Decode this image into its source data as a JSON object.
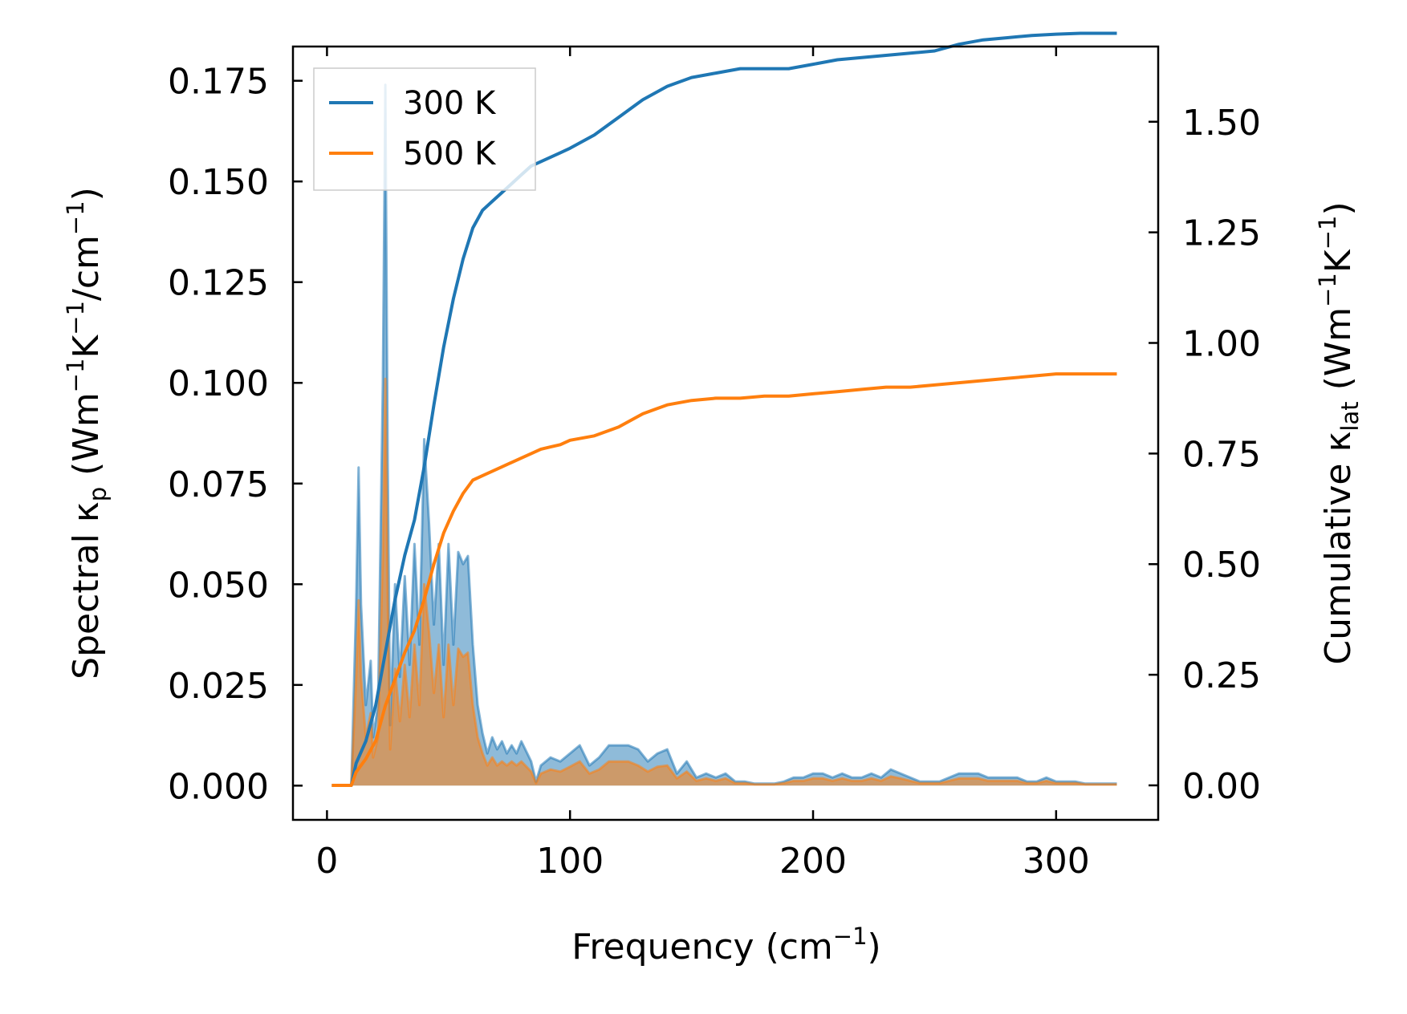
{
  "chart_data": {
    "type": "line",
    "xlabel": "Frequency (cm",
    "xlabel_sup": "−1",
    "xlabel_end": ")",
    "ylabel_left": {
      "prefix": "Spectral κ",
      "sub": "p",
      "unit_a": " (Wm",
      "sup1": "−1",
      "unit_b": "K",
      "sup2": "−1",
      "unit_c": "/cm",
      "sup3": "−1",
      "unit_d": ")"
    },
    "ylabel_right": {
      "prefix": "Cumulative κ",
      "sub": "lat",
      "unit_a": " (Wm",
      "sup1": "−1",
      "unit_b": "K",
      "sup2": "−1",
      "unit_c": ")"
    },
    "xlim": [
      -14,
      342
    ],
    "ylim_left": [
      -0.0085,
      0.1835
    ],
    "ylim_right": [
      -0.078,
      1.67
    ],
    "x_ticks": [
      0,
      100,
      200,
      300
    ],
    "x_tick_labels": [
      "0",
      "100",
      "200",
      "300"
    ],
    "y_left_ticks": [
      0,
      0.025,
      0.05,
      0.075,
      0.1,
      0.125,
      0.15,
      0.175
    ],
    "y_left_tick_labels": [
      "0.000",
      "0.025",
      "0.050",
      "0.075",
      "0.100",
      "0.125",
      "0.150",
      "0.175"
    ],
    "y_right_ticks": [
      0,
      0.25,
      0.5,
      0.75,
      1.0,
      1.25,
      1.5
    ],
    "y_right_tick_labels": [
      "0.00",
      "0.25",
      "0.50",
      "0.75",
      "1.00",
      "1.25",
      "1.50"
    ],
    "legend_position": "top-left",
    "series": [
      {
        "name": "300 K",
        "color": "#1f77b4",
        "spectral": {
          "x": [
            2,
            10,
            12,
            13,
            14,
            16,
            18,
            19,
            21,
            23,
            24,
            25,
            26,
            28,
            30,
            32,
            34,
            36,
            38,
            40,
            42,
            44,
            46,
            48,
            50,
            52,
            54,
            56,
            58,
            60,
            62,
            64,
            66,
            68,
            70,
            72,
            74,
            76,
            78,
            80,
            84,
            86,
            88,
            92,
            96,
            100,
            104,
            108,
            112,
            116,
            120,
            124,
            128,
            132,
            136,
            140,
            144,
            148,
            152,
            156,
            160,
            164,
            168,
            172,
            176,
            180,
            184,
            188,
            192,
            196,
            200,
            204,
            208,
            212,
            216,
            220,
            224,
            228,
            232,
            236,
            240,
            244,
            248,
            252,
            256,
            260,
            264,
            268,
            272,
            276,
            280,
            284,
            288,
            292,
            296,
            300,
            304,
            308,
            312,
            316,
            320,
            325
          ],
          "y": [
            0,
            0,
            0.045,
            0.079,
            0.045,
            0.02,
            0.031,
            0.012,
            0.02,
            0.1,
            0.174,
            0.08,
            0.015,
            0.05,
            0.027,
            0.052,
            0.03,
            0.06,
            0.035,
            0.086,
            0.065,
            0.04,
            0.06,
            0.03,
            0.06,
            0.035,
            0.058,
            0.055,
            0.057,
            0.035,
            0.02,
            0.013,
            0.008,
            0.012,
            0.009,
            0.011,
            0.008,
            0.01,
            0.008,
            0.011,
            0.006,
            0.001,
            0.005,
            0.007,
            0.006,
            0.008,
            0.01,
            0.005,
            0.007,
            0.01,
            0.01,
            0.01,
            0.009,
            0.006,
            0.008,
            0.009,
            0.003,
            0.006,
            0.002,
            0.003,
            0.002,
            0.003,
            0.001,
            0.001,
            0.0005,
            0.0005,
            0.0005,
            0.001,
            0.002,
            0.002,
            0.003,
            0.003,
            0.002,
            0.003,
            0.002,
            0.002,
            0.003,
            0.002,
            0.004,
            0.003,
            0.002,
            0.001,
            0.001,
            0.001,
            0.002,
            0.003,
            0.003,
            0.003,
            0.002,
            0.002,
            0.002,
            0.002,
            0.001,
            0.001,
            0.002,
            0.001,
            0.001,
            0.001,
            0.0005,
            0.0005,
            0.0005,
            0.0005
          ]
        },
        "cumulative": {
          "x": [
            2,
            10,
            12,
            16,
            20,
            24,
            28,
            32,
            36,
            40,
            44,
            48,
            52,
            56,
            60,
            64,
            68,
            72,
            76,
            80,
            84,
            88,
            92,
            96,
            100,
            110,
            120,
            130,
            140,
            150,
            160,
            170,
            180,
            190,
            200,
            210,
            220,
            230,
            240,
            250,
            260,
            270,
            280,
            290,
            300,
            310,
            325
          ],
          "y": [
            0,
            0,
            0.05,
            0.1,
            0.18,
            0.3,
            0.42,
            0.52,
            0.6,
            0.72,
            0.86,
            0.99,
            1.1,
            1.19,
            1.26,
            1.3,
            1.32,
            1.34,
            1.36,
            1.38,
            1.4,
            1.41,
            1.42,
            1.43,
            1.44,
            1.47,
            1.51,
            1.55,
            1.58,
            1.6,
            1.61,
            1.62,
            1.62,
            1.62,
            1.63,
            1.64,
            1.645,
            1.65,
            1.655,
            1.66,
            1.675,
            1.685,
            1.69,
            1.695,
            1.698,
            1.7,
            1.7
          ]
        }
      },
      {
        "name": "500 K",
        "color": "#ff7f0e",
        "spectral": {
          "x": [
            2,
            10,
            12,
            13,
            14,
            16,
            18,
            19,
            21,
            23,
            24,
            25,
            26,
            28,
            30,
            32,
            34,
            36,
            38,
            40,
            42,
            44,
            46,
            48,
            50,
            52,
            54,
            56,
            58,
            60,
            62,
            64,
            66,
            68,
            70,
            72,
            74,
            76,
            78,
            80,
            84,
            86,
            88,
            92,
            96,
            100,
            104,
            108,
            112,
            116,
            120,
            124,
            128,
            132,
            136,
            140,
            144,
            148,
            152,
            156,
            160,
            164,
            168,
            172,
            176,
            180,
            184,
            188,
            192,
            196,
            200,
            204,
            208,
            212,
            216,
            220,
            224,
            228,
            232,
            236,
            240,
            244,
            248,
            252,
            256,
            260,
            264,
            268,
            272,
            276,
            280,
            284,
            288,
            292,
            296,
            300,
            304,
            308,
            312,
            316,
            320,
            325
          ],
          "y": [
            0,
            0,
            0.027,
            0.046,
            0.027,
            0.012,
            0.018,
            0.007,
            0.012,
            0.058,
            0.101,
            0.046,
            0.009,
            0.029,
            0.016,
            0.03,
            0.017,
            0.035,
            0.02,
            0.05,
            0.038,
            0.023,
            0.035,
            0.017,
            0.035,
            0.02,
            0.034,
            0.032,
            0.033,
            0.02,
            0.012,
            0.008,
            0.005,
            0.007,
            0.005,
            0.006,
            0.005,
            0.006,
            0.005,
            0.006,
            0.0035,
            0.0006,
            0.003,
            0.004,
            0.0035,
            0.0047,
            0.006,
            0.003,
            0.004,
            0.006,
            0.006,
            0.006,
            0.005,
            0.0035,
            0.0047,
            0.005,
            0.0018,
            0.0035,
            0.0012,
            0.0018,
            0.0012,
            0.0018,
            0.0006,
            0.0006,
            0.0003,
            0.0003,
            0.0003,
            0.0006,
            0.0012,
            0.0012,
            0.0018,
            0.0018,
            0.0012,
            0.0018,
            0.0012,
            0.0012,
            0.0018,
            0.0012,
            0.0023,
            0.0018,
            0.0012,
            0.0006,
            0.0006,
            0.0006,
            0.0012,
            0.0018,
            0.0018,
            0.0018,
            0.0012,
            0.0012,
            0.0012,
            0.0012,
            0.0006,
            0.0006,
            0.0012,
            0.0006,
            0.0006,
            0.0006,
            0.0003,
            0.0003,
            0.0003,
            0.0003
          ]
        },
        "cumulative": {
          "x": [
            2,
            10,
            12,
            16,
            20,
            24,
            28,
            32,
            36,
            40,
            44,
            48,
            52,
            56,
            60,
            64,
            68,
            72,
            76,
            80,
            84,
            88,
            92,
            96,
            100,
            110,
            120,
            130,
            140,
            150,
            160,
            170,
            180,
            190,
            200,
            210,
            220,
            230,
            240,
            250,
            260,
            270,
            280,
            290,
            300,
            310,
            325
          ],
          "y": [
            0,
            0,
            0.03,
            0.06,
            0.1,
            0.18,
            0.24,
            0.3,
            0.35,
            0.42,
            0.5,
            0.57,
            0.62,
            0.66,
            0.69,
            0.7,
            0.71,
            0.72,
            0.73,
            0.74,
            0.75,
            0.76,
            0.765,
            0.77,
            0.78,
            0.79,
            0.81,
            0.84,
            0.86,
            0.87,
            0.875,
            0.875,
            0.88,
            0.88,
            0.885,
            0.89,
            0.895,
            0.9,
            0.9,
            0.905,
            0.91,
            0.915,
            0.92,
            0.925,
            0.93,
            0.93,
            0.93
          ]
        }
      }
    ]
  }
}
